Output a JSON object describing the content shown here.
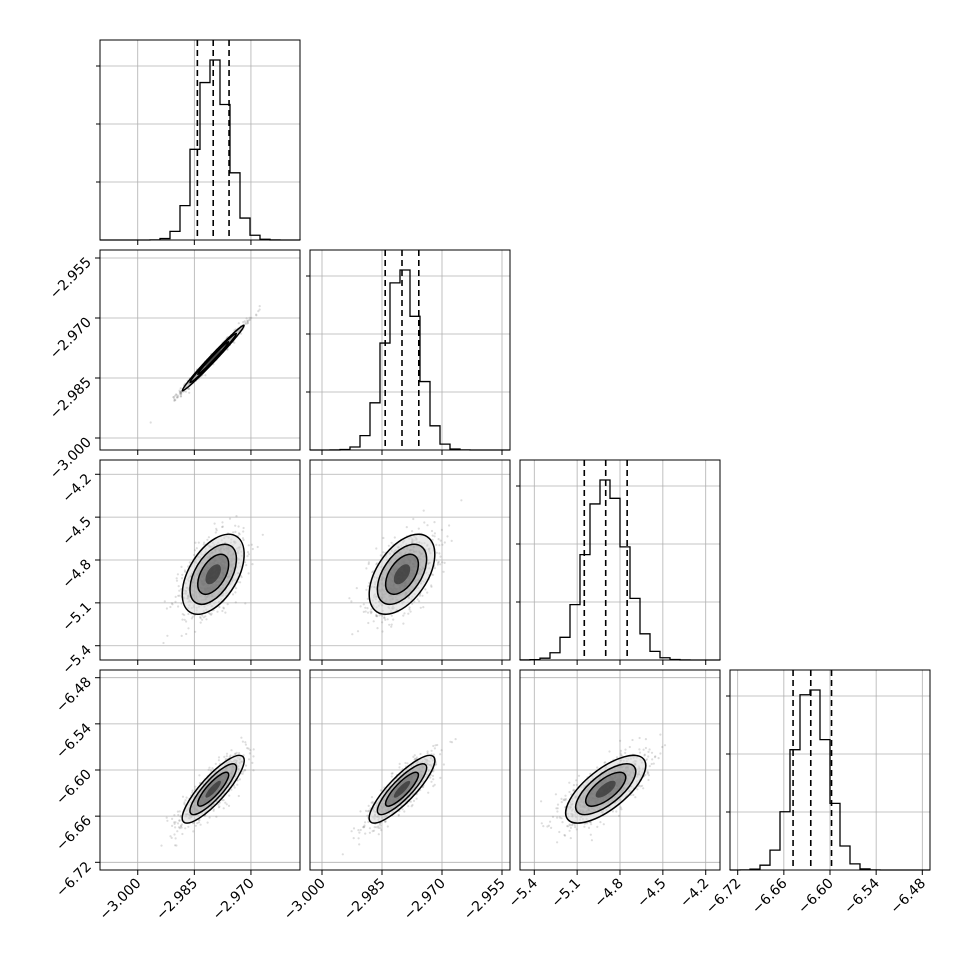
{
  "chart_data": {
    "type": "corner",
    "parameters": [
      {
        "mean": -2.98,
        "std": 0.0041,
        "quantiles": [
          -2.9842,
          -2.98,
          -2.9758
        ],
        "range": [
          -3.01,
          -2.957
        ],
        "ticks": [
          -3.0,
          -2.985,
          -2.97
        ],
        "tick_labels": [
          "−3.000",
          "−2.985",
          "−2.970"
        ]
      },
      {
        "mean": -2.98,
        "std": 0.0041,
        "quantiles": [
          -2.9842,
          -2.98,
          -2.9758
        ],
        "range": [
          -3.003,
          -2.953
        ],
        "ticks": [
          -3.0,
          -2.985,
          -2.97,
          -2.955
        ],
        "tick_labels": [
          "−3.000",
          "−2.985",
          "−2.970",
          "−2.955"
        ]
      },
      {
        "mean": -4.9,
        "std": 0.14,
        "quantiles": [
          -5.05,
          -4.9,
          -4.75
        ],
        "range": [
          -5.5,
          -4.1
        ],
        "ticks": [
          -5.4,
          -5.1,
          -4.8,
          -4.5,
          -4.2
        ],
        "tick_labels": [
          "−5.4",
          "−5.1",
          "−4.8",
          "−4.5",
          "−4.2"
        ]
      },
      {
        "mean": -6.625,
        "std": 0.022,
        "quantiles": [
          -6.648,
          -6.625,
          -6.598
        ],
        "range": [
          -6.73,
          -6.47
        ],
        "ticks": [
          -6.72,
          -6.66,
          -6.6,
          -6.54,
          -6.48
        ],
        "tick_labels": [
          "−6.72",
          "−6.66",
          "−6.60",
          "−6.54",
          "−6.48"
        ]
      }
    ],
    "correlations": [
      [
        1,
        0.99,
        0.5,
        0.85
      ],
      [
        0.99,
        1,
        0.5,
        0.85
      ],
      [
        0.5,
        0.5,
        1,
        0.7
      ],
      [
        0.85,
        0.85,
        0.7,
        1
      ]
    ],
    "contour_levels_sigma": [
      0.5,
      1.0,
      1.5,
      2.0
    ],
    "grid": true,
    "histogram_bins": 20
  }
}
